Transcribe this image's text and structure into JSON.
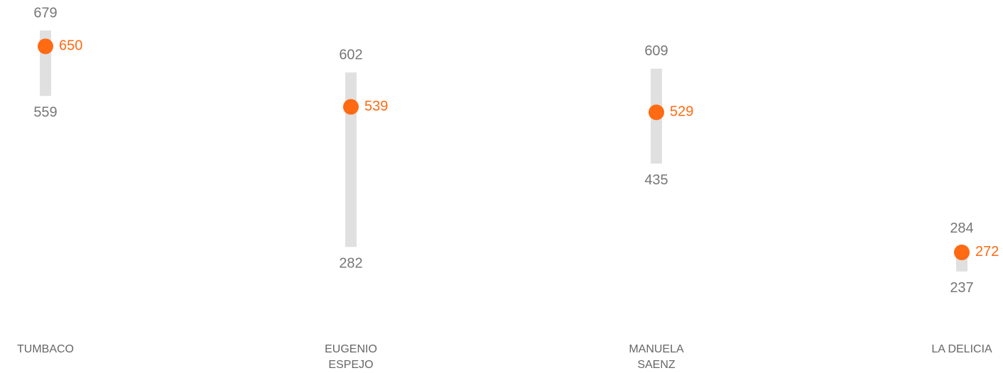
{
  "chart_data": {
    "type": "range_dot",
    "categories": [
      "TUMBACO",
      "EUGENIO ESPEJO",
      "MANUELA SAENZ",
      "LA DELICIA"
    ],
    "low": [
      559,
      282,
      435,
      237
    ],
    "high": [
      679,
      602,
      609,
      284
    ],
    "values": [
      650,
      539,
      529,
      272
    ],
    "range_color": "#e0e0e0",
    "color": "#ff6a13",
    "ylim": [
      0,
      735
    ]
  }
}
